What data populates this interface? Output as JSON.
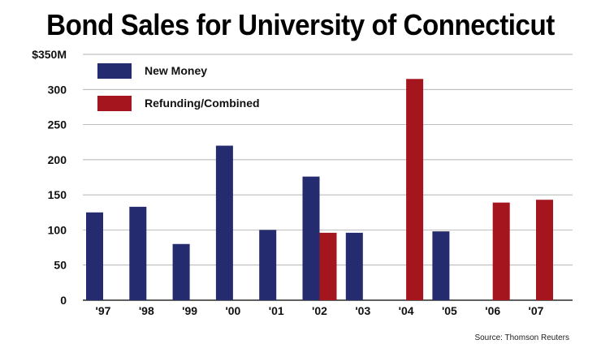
{
  "title": "Bond Sales for University of Connecticut",
  "source": "Source: Thomson Reuters",
  "chart_data": {
    "type": "bar",
    "title": "Bond Sales for University of Connecticut",
    "categories": [
      "'97",
      "'98",
      "'99",
      "'00",
      "'01",
      "'02",
      "'03",
      "'04",
      "'05",
      "'06",
      "'07"
    ],
    "series": [
      {
        "name": "New Money",
        "color": "#242b6e",
        "values": [
          125,
          133,
          80,
          220,
          100,
          176,
          96,
          0,
          98,
          0,
          0
        ]
      },
      {
        "name": "Refunding/Combined",
        "color": "#a5151e",
        "values": [
          0,
          0,
          0,
          0,
          0,
          96,
          0,
          315,
          0,
          139,
          143
        ]
      }
    ],
    "ylim": [
      0,
      350
    ],
    "yticks": [
      0,
      50,
      100,
      150,
      200,
      250,
      300,
      350
    ],
    "ytick_labels": [
      "0",
      "50",
      "100",
      "150",
      "200",
      "250",
      "300",
      "$350M"
    ],
    "grid": true,
    "legend": "top-left"
  }
}
